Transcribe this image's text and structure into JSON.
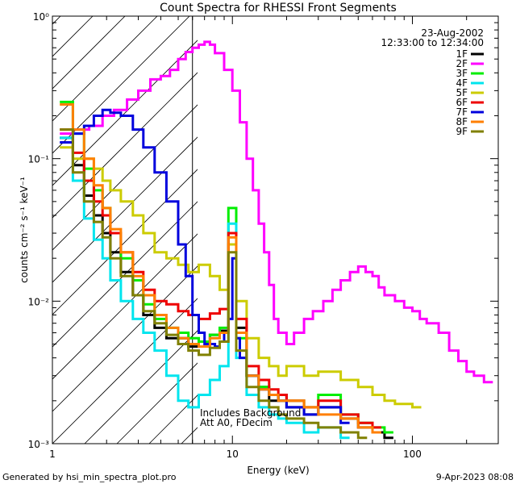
{
  "chart_data": {
    "type": "line",
    "title": "Count Spectra for RHESSI Front Segments",
    "xlabel": "Energy (keV)",
    "ylabel": "counts cm⁻² s⁻¹ keV⁻¹",
    "xscale": "log",
    "yscale": "log",
    "xlim": [
      1,
      300
    ],
    "ylim": [
      0.001,
      1
    ],
    "x_ticks": [
      1,
      10,
      100
    ],
    "x_tick_labels": [
      "1",
      "10",
      "100"
    ],
    "y_ticks": [
      0.001,
      0.01,
      0.1,
      1
    ],
    "y_tick_labels": [
      "10⁻³",
      "10⁻²",
      "10⁻¹",
      "10⁰"
    ],
    "date": "23-Aug-2002",
    "time_range": "12:33:00 to 12:34:00",
    "legend_placement": "top-right",
    "annotation": [
      "Includes Background",
      "Att A0, FDecim"
    ],
    "attenuator_cutoff_keV": 6,
    "series": [
      {
        "name": "1F",
        "color": "#000000",
        "x": [
          1.1,
          1.3,
          1.5,
          1.7,
          1.9,
          2.1,
          2.4,
          2.8,
          3.2,
          3.7,
          4.3,
          5,
          5.7,
          6.5,
          7.5,
          8.5,
          9.5,
          10.5,
          12,
          14,
          16,
          18,
          20,
          25,
          30,
          40,
          50,
          60,
          70
        ],
        "y": [
          0.14,
          0.09,
          0.055,
          0.04,
          0.03,
          0.022,
          0.016,
          0.011,
          0.008,
          0.0065,
          0.0055,
          0.0055,
          0.0048,
          0.0052,
          0.0058,
          0.0062,
          0.025,
          0.0065,
          0.003,
          0.0025,
          0.002,
          0.0022,
          0.0018,
          0.0016,
          0.0018,
          0.0015,
          0.0013,
          0.0012,
          0.0011
        ]
      },
      {
        "name": "2F",
        "color": "#ff00ff",
        "x": [
          1.1,
          1.3,
          1.6,
          1.9,
          2.2,
          2.6,
          3,
          3.5,
          4,
          4.5,
          5,
          5.5,
          6,
          6.5,
          7,
          7.5,
          8,
          9,
          10,
          11,
          12,
          13,
          14,
          15,
          16,
          17,
          18,
          20,
          22,
          25,
          28,
          32,
          36,
          40,
          45,
          50,
          55,
          60,
          65,
          70,
          80,
          90,
          100,
          110,
          120,
          140,
          160,
          180,
          200,
          220,
          250
        ],
        "y": [
          0.15,
          0.16,
          0.17,
          0.2,
          0.22,
          0.26,
          0.3,
          0.36,
          0.38,
          0.42,
          0.5,
          0.56,
          0.6,
          0.63,
          0.66,
          0.63,
          0.55,
          0.42,
          0.3,
          0.18,
          0.1,
          0.06,
          0.035,
          0.022,
          0.013,
          0.0075,
          0.006,
          0.005,
          0.006,
          0.0075,
          0.0085,
          0.01,
          0.012,
          0.014,
          0.016,
          0.0175,
          0.016,
          0.015,
          0.0125,
          0.011,
          0.01,
          0.009,
          0.0085,
          0.0075,
          0.007,
          0.006,
          0.0045,
          0.0038,
          0.0032,
          0.003,
          0.0027
        ]
      },
      {
        "name": "3F",
        "color": "#00ee00",
        "x": [
          1.1,
          1.3,
          1.5,
          1.7,
          1.9,
          2.1,
          2.4,
          2.8,
          3.2,
          3.7,
          4.3,
          5,
          5.7,
          6.5,
          7.5,
          8.5,
          9.5,
          10.5,
          12,
          14,
          16,
          18,
          20,
          25,
          30,
          40,
          50,
          60,
          70
        ],
        "y": [
          0.25,
          0.15,
          0.085,
          0.06,
          0.045,
          0.03,
          0.02,
          0.014,
          0.0095,
          0.0075,
          0.0065,
          0.006,
          0.0055,
          0.0052,
          0.0058,
          0.0065,
          0.045,
          0.0055,
          0.003,
          0.0025,
          0.0022,
          0.002,
          0.002,
          0.0018,
          0.0022,
          0.0016,
          0.0014,
          0.0013,
          0.0012
        ]
      },
      {
        "name": "4F",
        "color": "#00e5ee",
        "x": [
          1.1,
          1.3,
          1.5,
          1.7,
          1.9,
          2.1,
          2.4,
          2.8,
          3.2,
          3.7,
          4.3,
          5,
          5.7,
          6.5,
          7.5,
          8.5,
          9.5,
          10.5,
          12,
          14,
          16,
          18,
          20,
          25,
          30,
          40
        ],
        "y": [
          0.14,
          0.07,
          0.038,
          0.027,
          0.02,
          0.014,
          0.01,
          0.0075,
          0.006,
          0.0045,
          0.003,
          0.002,
          0.0018,
          0.0022,
          0.0028,
          0.0035,
          0.035,
          0.004,
          0.0022,
          0.0018,
          0.0016,
          0.0015,
          0.0014,
          0.0012,
          0.0013,
          0.0011
        ]
      },
      {
        "name": "5F",
        "color": "#cccc00",
        "x": [
          1.1,
          1.3,
          1.5,
          1.7,
          1.9,
          2.1,
          2.4,
          2.8,
          3.2,
          3.7,
          4.3,
          5,
          5.7,
          6.5,
          7.5,
          8.5,
          9.5,
          10.5,
          12,
          14,
          16,
          18,
          20,
          25,
          30,
          40,
          50,
          60,
          70,
          80,
          100
        ],
        "y": [
          0.12,
          0.1,
          0.1,
          0.085,
          0.07,
          0.06,
          0.05,
          0.04,
          0.03,
          0.022,
          0.02,
          0.018,
          0.016,
          0.018,
          0.015,
          0.012,
          0.025,
          0.01,
          0.0055,
          0.004,
          0.0035,
          0.003,
          0.0035,
          0.003,
          0.0032,
          0.0028,
          0.0025,
          0.0022,
          0.002,
          0.0019,
          0.0018
        ]
      },
      {
        "name": "6F",
        "color": "#ee0000",
        "x": [
          1.1,
          1.3,
          1.5,
          1.7,
          1.9,
          2.1,
          2.4,
          2.8,
          3.2,
          3.7,
          4.3,
          5,
          5.7,
          6.5,
          7.5,
          8.5,
          9.5,
          10.5,
          12,
          14,
          16,
          18,
          20,
          25,
          30,
          40,
          50,
          60
        ],
        "y": [
          0.16,
          0.11,
          0.07,
          0.05,
          0.04,
          0.03,
          0.022,
          0.016,
          0.012,
          0.01,
          0.0095,
          0.0085,
          0.008,
          0.0075,
          0.0082,
          0.0088,
          0.03,
          0.0075,
          0.0035,
          0.0028,
          0.0024,
          0.0022,
          0.002,
          0.0018,
          0.002,
          0.0016,
          0.0014,
          0.0013
        ]
      },
      {
        "name": "7F",
        "color": "#0000dd",
        "x": [
          1.1,
          1.3,
          1.5,
          1.7,
          1.9,
          2.1,
          2.4,
          2.8,
          3.2,
          3.7,
          4.3,
          5,
          5.5,
          6,
          6.5,
          7,
          7.5,
          8,
          8.5,
          9,
          9.5,
          10,
          10.5,
          11,
          12,
          14,
          16,
          18,
          20,
          25,
          30,
          40
        ],
        "y": [
          0.13,
          0.15,
          0.17,
          0.2,
          0.22,
          0.21,
          0.2,
          0.16,
          0.12,
          0.08,
          0.05,
          0.025,
          0.015,
          0.008,
          0.006,
          0.005,
          0.005,
          0.0048,
          0.0052,
          0.006,
          0.0075,
          0.02,
          0.0055,
          0.004,
          0.003,
          0.0024,
          0.0022,
          0.002,
          0.0018,
          0.0016,
          0.0018,
          0.0014
        ]
      },
      {
        "name": "8F",
        "color": "#ff7f00",
        "x": [
          1.1,
          1.3,
          1.5,
          1.7,
          1.9,
          2.1,
          2.4,
          2.8,
          3.2,
          3.7,
          4.3,
          5,
          5.7,
          6.5,
          7.5,
          8.5,
          9.5,
          10.5,
          12,
          14,
          16,
          18,
          20,
          25,
          30,
          40,
          50,
          60
        ],
        "y": [
          0.24,
          0.16,
          0.1,
          0.065,
          0.045,
          0.032,
          0.022,
          0.015,
          0.011,
          0.008,
          0.0065,
          0.0055,
          0.005,
          0.0048,
          0.0055,
          0.006,
          0.028,
          0.006,
          0.003,
          0.0024,
          0.0022,
          0.002,
          0.002,
          0.0018,
          0.0016,
          0.0015,
          0.0013,
          0.0012
        ]
      },
      {
        "name": "9F",
        "color": "#808000",
        "x": [
          1.1,
          1.3,
          1.5,
          1.7,
          1.9,
          2.1,
          2.4,
          2.8,
          3.2,
          3.7,
          4.3,
          5,
          5.7,
          6.5,
          7.5,
          8.5,
          9.5,
          10.5,
          12,
          14,
          16,
          18,
          20,
          25,
          30,
          40,
          50
        ],
        "y": [
          0.16,
          0.08,
          0.05,
          0.036,
          0.028,
          0.02,
          0.015,
          0.011,
          0.0085,
          0.007,
          0.0058,
          0.005,
          0.0045,
          0.0042,
          0.0047,
          0.0052,
          0.022,
          0.0045,
          0.0025,
          0.002,
          0.0018,
          0.0016,
          0.0015,
          0.0014,
          0.0013,
          0.0012,
          0.0011
        ]
      }
    ]
  },
  "footer": {
    "generated_by": "Generated by hsi_min_spectra_plot.pro",
    "timestamp": "9-Apr-2023 08:08"
  }
}
